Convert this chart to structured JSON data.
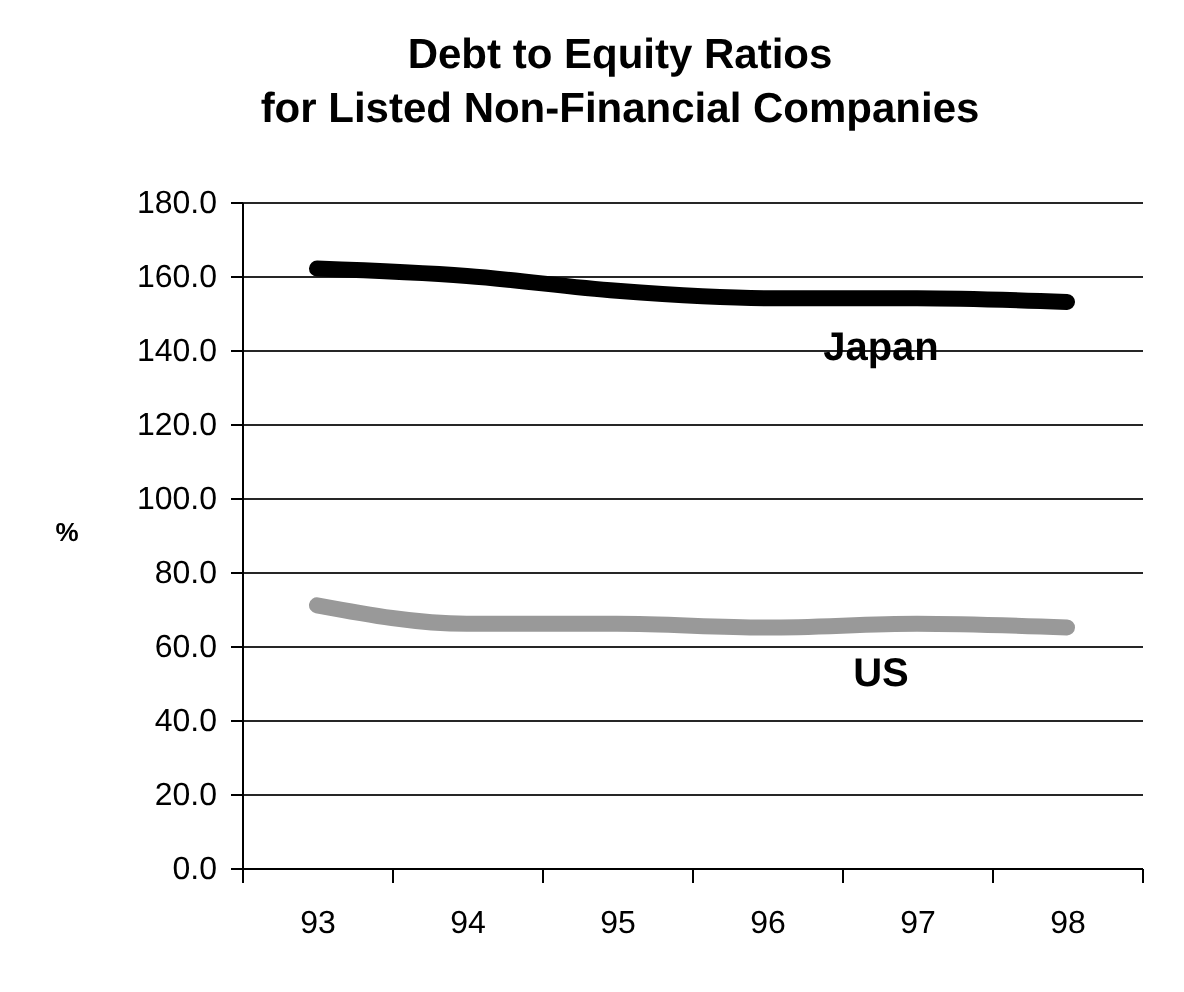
{
  "chart_data": {
    "type": "line",
    "title": "Debt to Equity Ratios\nfor Listed Non-Financial Companies",
    "ylabel": "%",
    "categories": [
      "93",
      "94",
      "95",
      "96",
      "97",
      "98"
    ],
    "series": [
      {
        "name": "Japan",
        "color": "#000000",
        "values": [
          162,
          160,
          156,
          154,
          154,
          153
        ]
      },
      {
        "name": "US",
        "color": "#999999",
        "values": [
          71,
          66,
          66,
          65,
          66,
          65
        ]
      }
    ],
    "ylim": [
      0,
      180
    ],
    "yticks": [
      {
        "value": 0,
        "label": "0.0"
      },
      {
        "value": 20,
        "label": "20.0"
      },
      {
        "value": 40,
        "label": "40.0"
      },
      {
        "value": 60,
        "label": "60.0"
      },
      {
        "value": 80,
        "label": "80.0"
      },
      {
        "value": 100,
        "label": "100.0"
      },
      {
        "value": 120,
        "label": "120.0"
      },
      {
        "value": 140,
        "label": "140.0"
      },
      {
        "value": 160,
        "label": "160.0"
      },
      {
        "value": 180,
        "label": "180.0"
      }
    ],
    "grid": "y",
    "line_style": "solid"
  }
}
